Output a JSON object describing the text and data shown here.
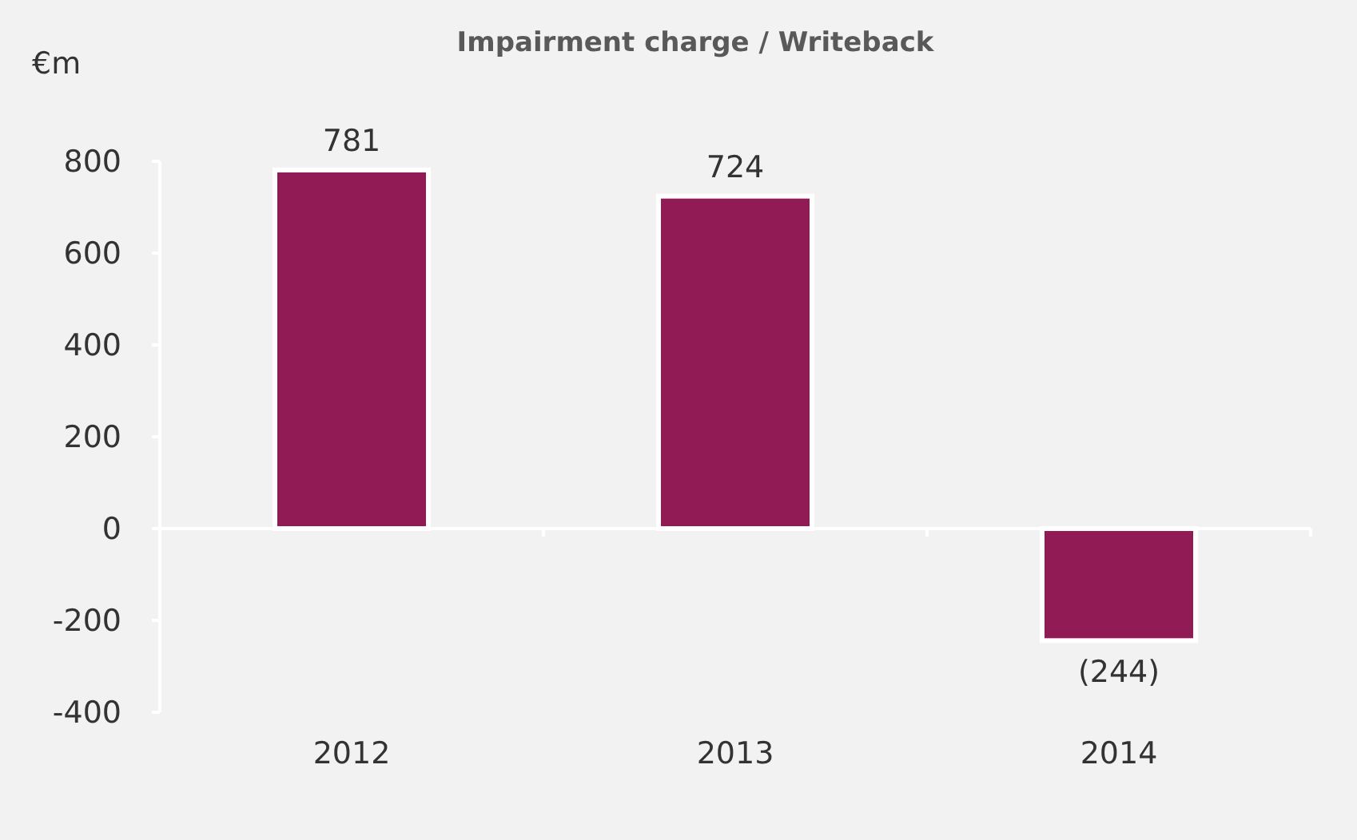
{
  "chart_data": {
    "type": "bar",
    "title": "Impairment charge / Writeback",
    "ylabel": "€m",
    "categories": [
      "2012",
      "2013",
      "2014"
    ],
    "values": [
      781,
      724,
      -244
    ],
    "value_labels": [
      "781",
      "724",
      "(244)"
    ],
    "color": "#911c55",
    "ylim": [
      -400,
      800
    ],
    "yticks": [
      -400,
      -200,
      0,
      200,
      400,
      600,
      800
    ]
  }
}
